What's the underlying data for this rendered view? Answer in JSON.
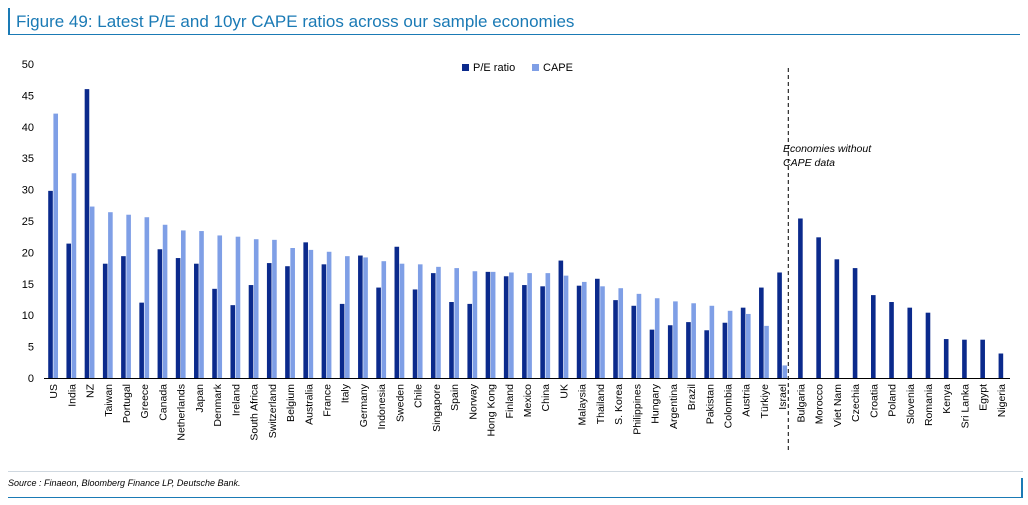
{
  "figure": {
    "title": "Figure 49: Latest P/E and 10yr CAPE ratios across our sample economies",
    "source": "Source : Finaeon, Bloomberg Finance LP, Deutsche Bank."
  },
  "colors": {
    "accent": "#1a7ab5",
    "pe": "#0b2a8c",
    "cape": "#7f9fe6"
  },
  "chart_data": {
    "type": "bar",
    "title": "Latest P/E and 10yr CAPE ratios across our sample economies",
    "xlabel": "",
    "ylabel": "",
    "ylim": [
      0,
      50
    ],
    "yticks": [
      0,
      5,
      10,
      15,
      20,
      25,
      30,
      35,
      40,
      45,
      50
    ],
    "legend_position": "top-center",
    "annotation": [
      "Economies without",
      "CAPE data"
    ],
    "categories": [
      "US",
      "India",
      "NZ",
      "Taiwan",
      "Portugal",
      "Greece",
      "Canada",
      "Netherlands",
      "Japan",
      "Denmark",
      "Ireland",
      "South Africa",
      "Switzerland",
      "Belgium",
      "Australia",
      "France",
      "Italy",
      "Germany",
      "Indonesia",
      "Sweden",
      "Chile",
      "Singapore",
      "Spain",
      "Norway",
      "Hong Kong",
      "Finland",
      "Mexico",
      "China",
      "UK",
      "Malaysia",
      "Thailand",
      "S. Korea",
      "Philippines",
      "Hungary",
      "Argentina",
      "Brazil",
      "Pakistan",
      "Colombia",
      "Austria",
      "Türkiye",
      "Israel",
      "Bulgaria",
      "Morocco",
      "Viet Nam",
      "Czechia",
      "Croatia",
      "Poland",
      "Slovenia",
      "Romania",
      "Kenya",
      "Sri Lanka",
      "Egypt",
      "Nigeria"
    ],
    "series": [
      {
        "name": "P/E ratio",
        "values": [
          29.8,
          21.4,
          46.0,
          18.2,
          19.4,
          12.0,
          20.5,
          19.1,
          18.2,
          14.2,
          11.6,
          14.8,
          18.3,
          17.8,
          21.6,
          18.1,
          11.8,
          19.5,
          14.4,
          20.9,
          14.1,
          16.7,
          12.1,
          11.8,
          16.9,
          16.2,
          14.8,
          14.6,
          18.7,
          14.7,
          15.8,
          12.4,
          11.5,
          7.7,
          8.4,
          8.9,
          7.6,
          8.8,
          11.2,
          14.4,
          16.8,
          25.4,
          22.4,
          18.9,
          17.5,
          13.2,
          12.1,
          11.2,
          10.4,
          6.2,
          6.1,
          6.1,
          3.9
        ]
      },
      {
        "name": "CAPE",
        "values": [
          42.1,
          32.6,
          27.3,
          26.4,
          26.0,
          25.6,
          24.4,
          23.5,
          23.4,
          22.7,
          22.5,
          22.1,
          22.0,
          20.7,
          20.4,
          20.1,
          19.4,
          19.2,
          18.6,
          18.2,
          18.1,
          17.7,
          17.5,
          17.0,
          16.9,
          16.8,
          16.7,
          16.7,
          16.3,
          15.3,
          14.6,
          14.3,
          13.4,
          12.7,
          12.2,
          11.9,
          11.5,
          10.7,
          10.2,
          8.3,
          2.0,
          null,
          null,
          null,
          null,
          null,
          null,
          null,
          null,
          null,
          null,
          null,
          null
        ]
      }
    ]
  }
}
